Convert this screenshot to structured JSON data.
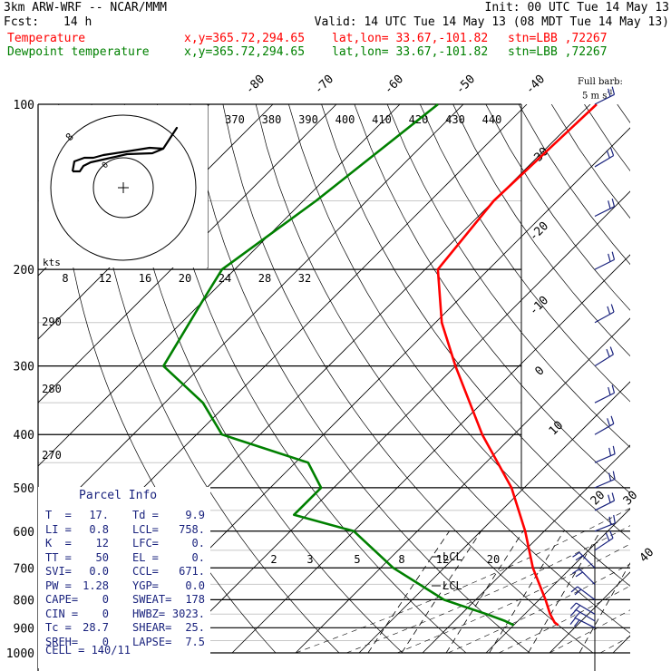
{
  "header": {
    "model": "3km ARW-WRF -- NCAR/MMM",
    "init": "Init: 00 UTC Tue 14 May 13",
    "fcst_label": "Fcst:",
    "fcst_value": "14 h",
    "valid": "Valid: 14 UTC Tue 14 May 13 (08 MDT Tue 14 May 13)",
    "temp_legend": "Temperature",
    "dew_legend": "Dewpoint temperature",
    "xy": "x,y=365.72,294.65",
    "latlon": "lat,lon= 33.67,-101.82",
    "stn": "stn=LBB ,72267",
    "temp_color": "#ff0000",
    "dew_color": "#008000",
    "full_barb_1": "Full barb:",
    "full_barb_2": "5 m s",
    "full_barb_exp": "-1"
  },
  "chart_data": {
    "type": "line",
    "title": "",
    "pressure_ticks": [
      "100",
      "200",
      "300",
      "400",
      "500",
      "600",
      "700",
      "800",
      "900",
      "1000"
    ],
    "pressure_values": [
      100,
      200,
      300,
      400,
      500,
      600,
      700,
      800,
      900,
      1000
    ],
    "skew_temp_labels": [
      "-80",
      "-70",
      "-60",
      "-50",
      "-40",
      "-30",
      "-20",
      "-10",
      "0",
      "10",
      "20",
      "30",
      "40"
    ],
    "theta_labels": [
      "370",
      "380",
      "390",
      "400",
      "410",
      "420",
      "430",
      "440"
    ],
    "theta_low_labels": [
      "290",
      "280",
      "270"
    ],
    "mixing_ratio_labels": [
      "2",
      "3",
      "5",
      "8",
      "12",
      "20"
    ],
    "lcl_labels": [
      "LCL",
      "LCL"
    ],
    "series": [
      {
        "name": "Temperature",
        "points": [
          [
            100,
            -59
          ],
          [
            150,
            -60
          ],
          [
            200,
            -58
          ],
          [
            250,
            -49
          ],
          [
            300,
            -40
          ],
          [
            400,
            -25
          ],
          [
            500,
            -12
          ],
          [
            600,
            -3
          ],
          [
            700,
            4
          ],
          [
            800,
            11
          ],
          [
            850,
            14
          ],
          [
            880,
            16
          ],
          [
            890,
            17
          ]
        ]
      },
      {
        "name": "Dewpoint temperature",
        "points": [
          [
            100,
            -84
          ],
          [
            150,
            -88
          ],
          [
            200,
            -92
          ],
          [
            230,
            -90
          ],
          [
            300,
            -86
          ],
          [
            350,
            -74
          ],
          [
            400,
            -66
          ],
          [
            450,
            -48
          ],
          [
            500,
            -42
          ],
          [
            560,
            -42
          ],
          [
            600,
            -30
          ],
          [
            700,
            -18
          ],
          [
            800,
            -5
          ],
          [
            850,
            4
          ],
          [
            875,
            8
          ],
          [
            890,
            10
          ]
        ]
      }
    ],
    "hodograph": {
      "ring_label": "8",
      "speed_unit": "kts",
      "speed_ticks": [
        "8",
        "12",
        "16",
        "20",
        "24",
        "28",
        "32"
      ]
    },
    "wind_barbs": [
      {
        "p": 100,
        "u": -1,
        "v": 0.5
      },
      {
        "p": 130,
        "u": -1,
        "v": 0.6
      },
      {
        "p": 160,
        "u": -1,
        "v": 0.5
      },
      {
        "p": 200,
        "u": -1,
        "v": 0.5
      },
      {
        "p": 250,
        "u": -0.9,
        "v": 0.5
      },
      {
        "p": 300,
        "u": -0.8,
        "v": 0.5
      },
      {
        "p": 350,
        "u": -0.8,
        "v": 0.4
      },
      {
        "p": 400,
        "u": -0.7,
        "v": 0.4
      },
      {
        "p": 450,
        "u": -0.7,
        "v": 0.3
      },
      {
        "p": 500,
        "u": -0.7,
        "v": 0.3
      },
      {
        "p": 550,
        "u": -0.6,
        "v": 0.3
      },
      {
        "p": 600,
        "u": -0.5,
        "v": 0.2
      },
      {
        "p": 650,
        "u": -0.3,
        "v": 0.2
      },
      {
        "p": 700,
        "u": 0.2,
        "v": 0.2
      },
      {
        "p": 750,
        "u": 0.3,
        "v": 0.3
      },
      {
        "p": 800,
        "u": 0.4,
        "v": 0.3
      },
      {
        "p": 850,
        "u": 0.5,
        "v": 0.3
      },
      {
        "p": 875,
        "u": 0.5,
        "v": 0.3
      },
      {
        "p": 900,
        "u": 0.6,
        "v": 0.3
      }
    ]
  },
  "parcel": {
    "title": "Parcel Info",
    "rows": [
      [
        "T  =",
        "17.",
        "Td =",
        "9.9"
      ],
      [
        "LI =",
        "0.8",
        "LCL=",
        "758."
      ],
      [
        "K  =",
        "12",
        "LFC=",
        "0."
      ],
      [
        "TT =",
        "50",
        "EL =",
        "0."
      ],
      [
        "SVI=",
        "0.0",
        "CCL=",
        "671."
      ],
      [
        "PW =",
        "1.28",
        "YGP=",
        "0.0"
      ],
      [
        "CAPE=",
        "0",
        "SWEAT=",
        "178"
      ],
      [
        "CIN =",
        "0",
        "HWBZ=",
        "3023."
      ],
      [
        "Tc =",
        "28.7",
        "SHEAR=",
        "25."
      ],
      [
        "SREH=",
        "0",
        "LAPSE=",
        "7.5"
      ]
    ],
    "cell": "CELL = 140/11"
  }
}
